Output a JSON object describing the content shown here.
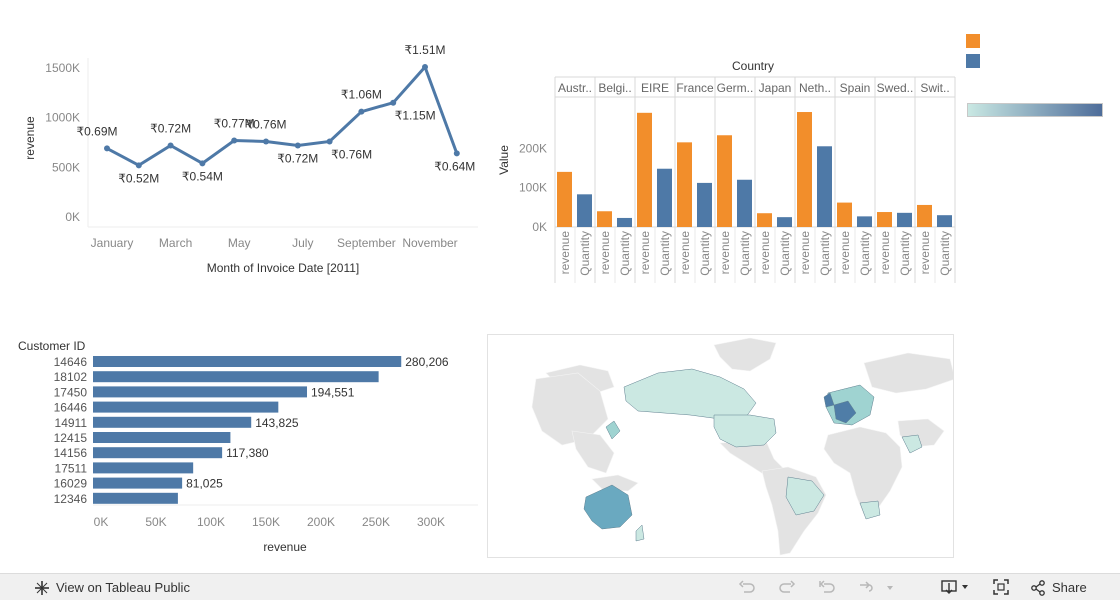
{
  "legend": {
    "colors": [
      "#f28e2b",
      "#4e79a7"
    ],
    "gradient": {
      "from": "#c9e8e3",
      "to": "#4e6d9a"
    }
  },
  "chart_data": [
    {
      "type": "line",
      "title": "",
      "xlabel": "Month of Invoice Date [2011]",
      "ylabel": "revenue",
      "x_tick_labels": [
        "January",
        "March",
        "May",
        "July",
        "September",
        "November"
      ],
      "y_tick_labels": [
        "1500K",
        "1000K",
        "500K",
        "0K"
      ],
      "ylim": [
        0,
        1600000
      ],
      "color": "#4e79a7",
      "grid": false,
      "points": [
        {
          "month": "January",
          "value": 690000,
          "label": "₹0.69M"
        },
        {
          "month": "February",
          "value": 520000,
          "label": "₹0.52M"
        },
        {
          "month": "March",
          "value": 720000,
          "label": "₹0.72M"
        },
        {
          "month": "April",
          "value": 540000,
          "label": "₹0.54M"
        },
        {
          "month": "May",
          "value": 770000,
          "label": "₹0.77M"
        },
        {
          "month": "June",
          "value": 760000,
          "label": "₹0.76M"
        },
        {
          "month": "July",
          "value": 720000,
          "label": "₹0.72M"
        },
        {
          "month": "August",
          "value": 760000,
          "label": "₹0.76M"
        },
        {
          "month": "September",
          "value": 1060000,
          "label": "₹1.06M"
        },
        {
          "month": "October",
          "value": 1150000,
          "label": "₹1.15M"
        },
        {
          "month": "November",
          "value": 1510000,
          "label": "₹1.51M"
        },
        {
          "month": "December",
          "value": 640000,
          "label": "₹0.64M"
        }
      ]
    },
    {
      "type": "bar",
      "title": "Country",
      "ylabel": "Value",
      "y_tick_labels": [
        "200K",
        "100K",
        "0K"
      ],
      "ylim": [
        0,
        320000
      ],
      "measure_colors": {
        "revenue": "#f28e2b",
        "Quantity": "#4e79a7"
      },
      "groups": [
        {
          "country": "Austr..",
          "revenue": 140000,
          "Quantity": 83000
        },
        {
          "country": "Belgi..",
          "revenue": 40000,
          "Quantity": 23000
        },
        {
          "country": "EIRE",
          "revenue": 290000,
          "Quantity": 148000
        },
        {
          "country": "France",
          "revenue": 215000,
          "Quantity": 112000
        },
        {
          "country": "Germ..",
          "revenue": 233000,
          "Quantity": 120000
        },
        {
          "country": "Japan",
          "revenue": 35000,
          "Quantity": 25000
        },
        {
          "country": "Neth..",
          "revenue": 292000,
          "Quantity": 205000
        },
        {
          "country": "Spain",
          "revenue": 62000,
          "Quantity": 27000
        },
        {
          "country": "Swed..",
          "revenue": 38000,
          "Quantity": 36000
        },
        {
          "country": "Swit..",
          "revenue": 56000,
          "Quantity": 30000
        }
      ]
    },
    {
      "type": "bar",
      "orientation": "horizontal",
      "row_header": "Customer ID",
      "xlabel": "revenue",
      "x_tick_labels": [
        "0K",
        "50K",
        "100K",
        "150K",
        "200K",
        "250K",
        "300K"
      ],
      "xlim": [
        0,
        300000
      ],
      "color": "#4e79a7",
      "bars": [
        {
          "id": "14646",
          "value": 280206,
          "label": "280,206"
        },
        {
          "id": "18102",
          "value": 259657,
          "label": ""
        },
        {
          "id": "17450",
          "value": 194551,
          "label": "194,551"
        },
        {
          "id": "16446",
          "value": 168472,
          "label": ""
        },
        {
          "id": "14911",
          "value": 143825,
          "label": "143,825"
        },
        {
          "id": "12415",
          "value": 124915,
          "label": ""
        },
        {
          "id": "14156",
          "value": 117380,
          "label": "117,380"
        },
        {
          "id": "17511",
          "value": 91062,
          "label": ""
        },
        {
          "id": "16029",
          "value": 81025,
          "label": "81,025"
        },
        {
          "id": "12346",
          "value": 77184,
          "label": ""
        }
      ]
    }
  ],
  "map": {
    "colors": {
      "land": "#e3e3e3",
      "low": "#cbe8e2",
      "mid": "#9fd3d1",
      "high": "#6aa9c0",
      "dark": "#4f7da7"
    },
    "shaded_regions": [
      "Canada",
      "USA",
      "Brazil",
      "South Africa",
      "Australia",
      "Saudi Arabia",
      "Japan",
      "Europe"
    ]
  },
  "toolbar": {
    "view_label": "View on Tableau Public",
    "share_label": "Share"
  }
}
